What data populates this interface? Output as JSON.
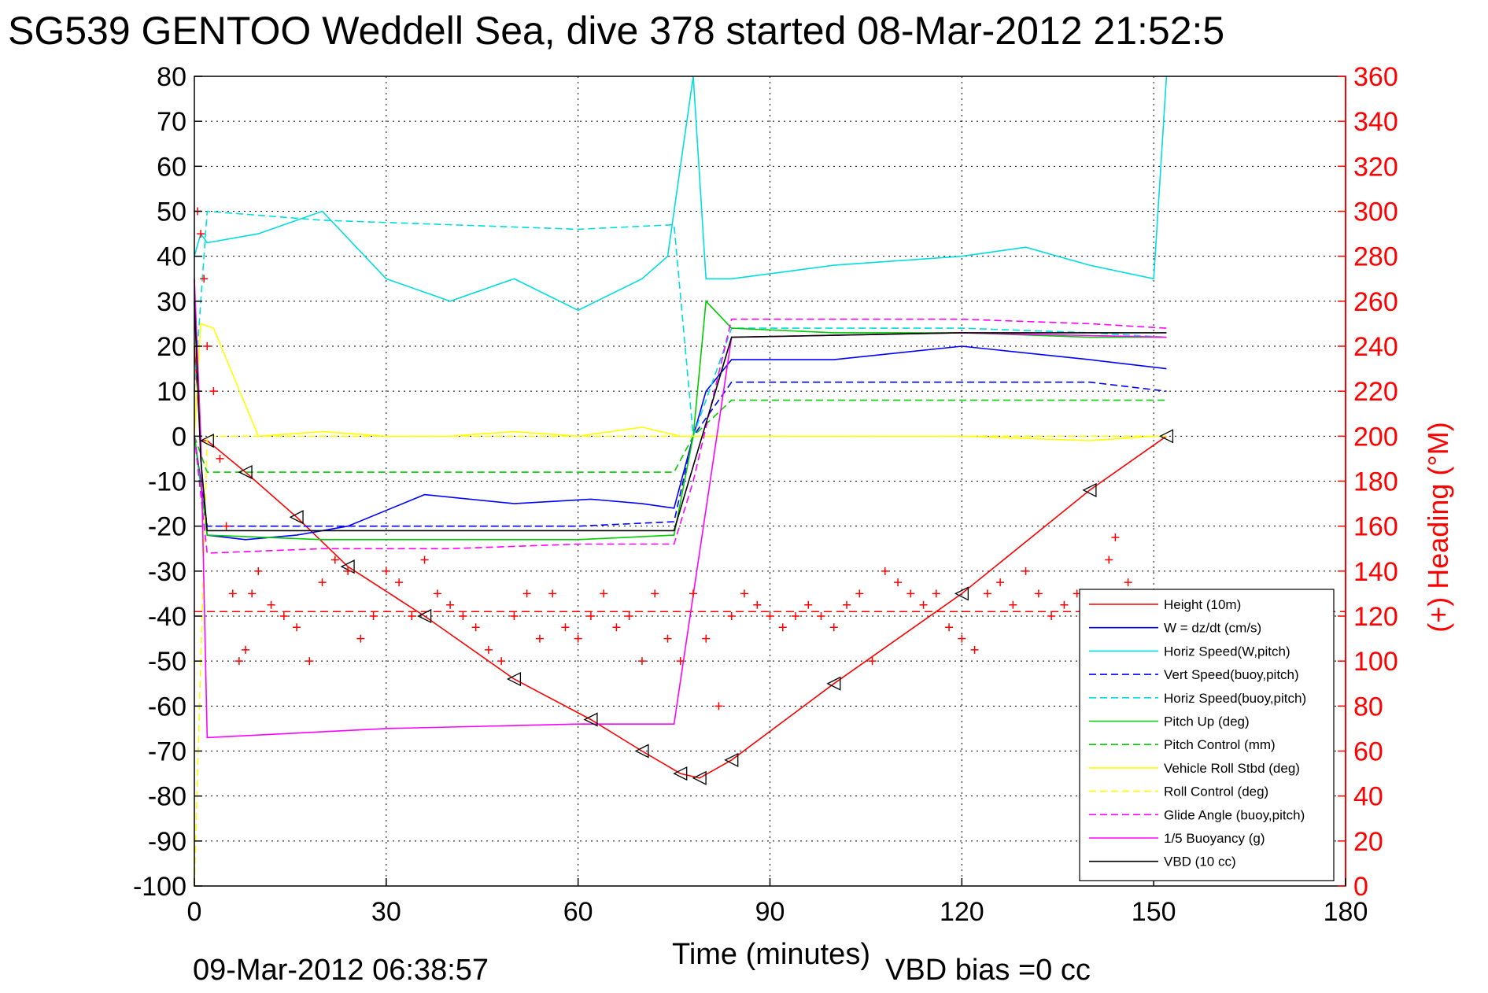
{
  "chart_data": {
    "type": "line",
    "title": "SG539 GENTOO Weddell Sea, dive 378 started 08-Mar-2012 21:52:5",
    "xlabel": "Time (minutes)",
    "ylabel_right": "(+) Heading (°M)",
    "footer_date": "09-Mar-2012 06:38:57",
    "footer_note": "VBD bias =0 cc",
    "xlim": [
      0,
      180
    ],
    "ylim_left": [
      -100,
      80
    ],
    "ylim_right": [
      0,
      360
    ],
    "xticks": [
      0,
      30,
      60,
      90,
      120,
      150,
      180
    ],
    "yticks_left": [
      80,
      70,
      60,
      50,
      40,
      30,
      20,
      10,
      0,
      -10,
      -20,
      -30,
      -40,
      -50,
      -60,
      -70,
      -80,
      -90,
      -100
    ],
    "yticks_right": [
      360,
      340,
      320,
      300,
      280,
      260,
      240,
      220,
      200,
      180,
      160,
      140,
      120,
      100,
      80,
      60,
      40,
      20,
      0
    ],
    "grid": true,
    "legend_position": "bottom-right",
    "heading_reference": 122,
    "series": [
      {
        "name": "Height (10m)",
        "color": "#ff0000",
        "style": "solid",
        "x": [
          0,
          1,
          2,
          8,
          16,
          24,
          36,
          50,
          62,
          70,
          76,
          79,
          84,
          100,
          120,
          140,
          152
        ],
        "y": [
          20,
          -1,
          -1,
          -8,
          -18,
          -29,
          -40,
          -54,
          -63,
          -70,
          -75,
          -76,
          -72,
          -55,
          -35,
          -12,
          0
        ]
      },
      {
        "name": "W = dz/dt (cm/s)",
        "color": "#0000ff",
        "style": "solid",
        "x": [
          0,
          1,
          2,
          8,
          16,
          24,
          36,
          50,
          62,
          70,
          75,
          78,
          80,
          84,
          100,
          120,
          140,
          152
        ],
        "y": [
          0,
          -10,
          -22,
          -23,
          -22,
          -20,
          -13,
          -15,
          -14,
          -15,
          -16,
          0,
          10,
          17,
          17,
          20,
          17,
          15
        ]
      },
      {
        "name": "Horiz Speed(W,pitch)",
        "color": "#00dddd",
        "style": "solid",
        "x": [
          0,
          1,
          2,
          10,
          20,
          30,
          40,
          50,
          60,
          70,
          74,
          76,
          78,
          80,
          84,
          100,
          120,
          130,
          140,
          150,
          152
        ],
        "y": [
          40,
          45,
          43,
          45,
          50,
          35,
          30,
          35,
          28,
          35,
          40,
          60,
          80,
          35,
          35,
          38,
          40,
          42,
          38,
          35,
          80
        ]
      },
      {
        "name": "Vert Speed(buoy,pitch)",
        "color": "#0000ff",
        "style": "dashed",
        "x": [
          0,
          2,
          30,
          60,
          75,
          78,
          84,
          100,
          120,
          140,
          152
        ],
        "y": [
          0,
          -20,
          -20,
          -20,
          -19,
          0,
          12,
          12,
          12,
          12,
          10
        ]
      },
      {
        "name": "Horiz Speed(buoy,pitch)",
        "color": "#00dddd",
        "style": "dashed",
        "x": [
          0,
          2,
          20,
          40,
          60,
          75,
          78,
          84,
          100,
          120,
          140,
          152
        ],
        "y": [
          10,
          50,
          48,
          47,
          46,
          47,
          0,
          24,
          24,
          24,
          23,
          22
        ]
      },
      {
        "name": "Pitch Up (deg)",
        "color": "#00cc00",
        "style": "solid",
        "x": [
          0,
          2,
          20,
          40,
          60,
          75,
          78,
          80,
          84,
          100,
          120,
          140,
          152
        ],
        "y": [
          0,
          -22,
          -23,
          -23,
          -23,
          -22,
          0,
          30,
          24,
          23,
          23,
          22,
          22
        ]
      },
      {
        "name": "Pitch Control (mm)",
        "color": "#00cc00",
        "style": "dashed",
        "x": [
          0,
          2,
          20,
          40,
          60,
          75,
          78,
          84,
          100,
          120,
          140,
          152
        ],
        "y": [
          0,
          -8,
          -8,
          -8,
          -8,
          -8,
          0,
          8,
          8,
          8,
          8,
          8
        ]
      },
      {
        "name": "Vehicle Roll Stbd (deg)",
        "color": "#ffff00",
        "style": "solid",
        "x": [
          0,
          1,
          3,
          10,
          20,
          30,
          40,
          50,
          60,
          70,
          76,
          80,
          84,
          100,
          120,
          140,
          150,
          152
        ],
        "y": [
          0,
          25,
          24,
          0,
          1,
          0,
          0,
          1,
          0,
          2,
          0,
          0,
          0,
          0,
          0,
          -1,
          0,
          0
        ]
      },
      {
        "name": "Roll Control (deg)",
        "color": "#ffff00",
        "style": "dashed",
        "x": [
          0,
          2,
          30,
          60,
          78,
          84,
          120,
          152
        ],
        "y": [
          -100,
          0,
          0,
          0,
          0,
          0,
          0,
          0
        ]
      },
      {
        "name": "Glide Angle (buoy,pitch)",
        "color": "#ff00ff",
        "style": "dashed",
        "x": [
          0,
          2,
          20,
          40,
          60,
          75,
          78,
          84,
          100,
          120,
          140,
          152
        ],
        "y": [
          0,
          -26,
          -25,
          -25,
          -24,
          -24,
          -10,
          26,
          26,
          26,
          25,
          24
        ]
      },
      {
        "name": "1/5 Buoyancy (g)",
        "color": "#ff00ff",
        "style": "solid",
        "x": [
          0,
          1,
          2,
          30,
          60,
          75,
          84,
          120,
          152
        ],
        "y": [
          35,
          0,
          -67,
          -65,
          -64,
          -64,
          22,
          23,
          22
        ]
      },
      {
        "name": "VBD (10 cc)",
        "color": "#000000",
        "style": "solid",
        "x": [
          0,
          1,
          2,
          30,
          60,
          75,
          84,
          120,
          152
        ],
        "y": [
          30,
          -5,
          -21,
          -21,
          -21,
          -21,
          22,
          23,
          23
        ]
      }
    ],
    "heading_series": {
      "name": "(+) Heading",
      "color": "#ff0000",
      "marker": "+",
      "x": [
        0.5,
        1,
        1.5,
        2,
        3,
        4,
        5,
        6,
        7,
        8,
        9,
        10,
        12,
        14,
        16,
        18,
        20,
        22,
        24,
        26,
        28,
        30,
        32,
        34,
        36,
        38,
        40,
        42,
        44,
        46,
        48,
        50,
        52,
        54,
        56,
        58,
        60,
        62,
        64,
        66,
        68,
        70,
        72,
        74,
        76,
        78,
        80,
        82,
        84,
        86,
        88,
        90,
        92,
        94,
        96,
        98,
        100,
        102,
        104,
        106,
        108,
        110,
        112,
        114,
        116,
        118,
        120,
        122,
        124,
        126,
        128,
        130,
        132,
        134,
        136,
        138,
        140,
        142,
        143,
        144,
        146,
        148,
        150,
        152
      ],
      "y": [
        300,
        290,
        270,
        240,
        220,
        190,
        160,
        130,
        100,
        105,
        130,
        140,
        125,
        120,
        115,
        100,
        135,
        145,
        140,
        110,
        120,
        140,
        135,
        120,
        145,
        130,
        125,
        120,
        115,
        105,
        100,
        120,
        130,
        110,
        130,
        115,
        110,
        120,
        130,
        115,
        120,
        100,
        130,
        110,
        100,
        130,
        110,
        80,
        120,
        130,
        125,
        120,
        115,
        120,
        125,
        120,
        115,
        125,
        130,
        100,
        140,
        135,
        130,
        125,
        130,
        115,
        110,
        105,
        130,
        135,
        125,
        140,
        130,
        120,
        125,
        130,
        120,
        120,
        145,
        155,
        135,
        130,
        125,
        120
      ]
    }
  }
}
